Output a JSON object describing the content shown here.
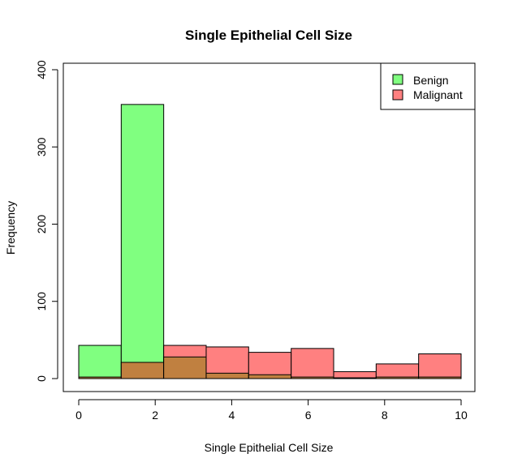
{
  "chart_data": {
    "type": "bar",
    "title": "Single Epithelial Cell Size",
    "xlabel": "Single Epithelial Cell Size",
    "ylabel": "Frequency",
    "xlim": [
      0,
      10
    ],
    "ylim": [
      0,
      400
    ],
    "x_ticks": [
      0,
      2,
      4,
      6,
      8,
      10
    ],
    "y_ticks": [
      0,
      100,
      200,
      300,
      400
    ],
    "bin_edges": [
      0,
      1.111,
      2.222,
      3.333,
      4.444,
      5.556,
      6.667,
      7.778,
      8.889,
      10
    ],
    "series": [
      {
        "name": "Benign",
        "color": "#80FF80",
        "values": [
          43,
          355,
          28,
          7,
          5,
          2,
          1,
          2,
          2
        ]
      },
      {
        "name": "Malignant",
        "color": "#FF8080",
        "overlap_color": "#C08040",
        "values": [
          2,
          21,
          43,
          41,
          34,
          39,
          9,
          19,
          32
        ]
      }
    ],
    "legend_position": "top-right",
    "grid": false
  }
}
